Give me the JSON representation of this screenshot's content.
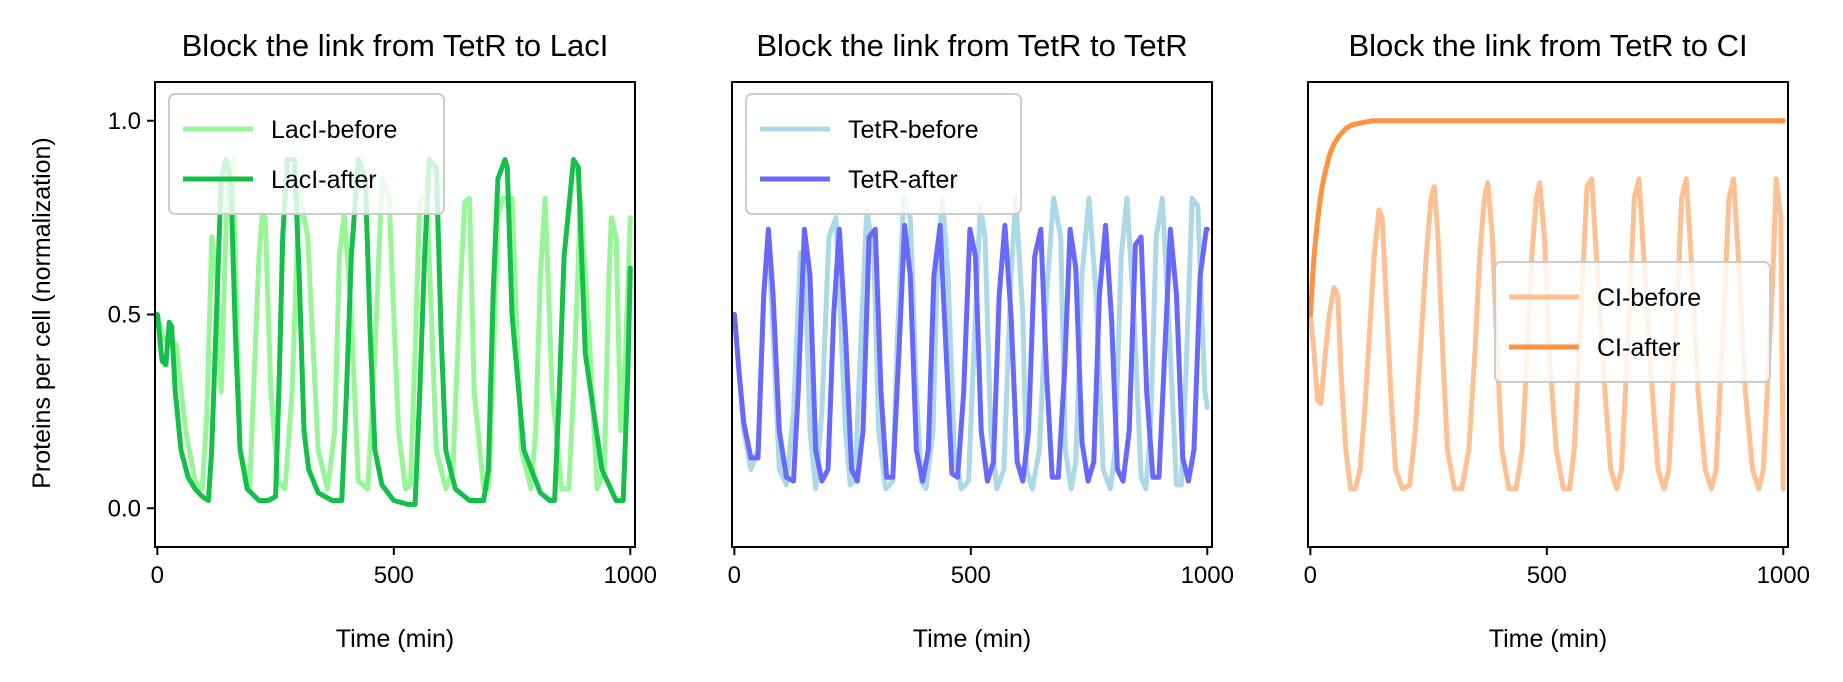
{
  "chart_data": [
    {
      "type": "line",
      "title": "Block the link from TetR to LacI",
      "xlabel": "Time (min)",
      "ylabel": "Proteins per cell (normalization)",
      "xlim": [
        -5,
        1010
      ],
      "ylim": [
        -0.1,
        1.1
      ],
      "xticks": [
        0,
        500,
        1000
      ],
      "yticks": [
        0.0,
        0.5,
        1.0
      ],
      "ytick_labels": [
        "0.0",
        "0.5",
        "1.0"
      ],
      "show_yticks": true,
      "legend_position": "top-left",
      "series": [
        {
          "name": "LacI-before",
          "color": "#98f598",
          "x": [
            0,
            10,
            18,
            28,
            40,
            60,
            80,
            95,
            105,
            115,
            125,
            135,
            148,
            160,
            175,
            195,
            215,
            222,
            228,
            240,
            255,
            270,
            285,
            300,
            318,
            340,
            360,
            375,
            385,
            395,
            410,
            425,
            445,
            460,
            475,
            490,
            510,
            525,
            535,
            545,
            555,
            570,
            590,
            610,
            625,
            640,
            650,
            660,
            670,
            690,
            700,
            710,
            720,
            730,
            750,
            770,
            790,
            800,
            810,
            820,
            835,
            855,
            870,
            880,
            895,
            915,
            930,
            945,
            955,
            960,
            970,
            980,
            990,
            1000
          ],
          "y": [
            0.5,
            0.45,
            0.43,
            0.44,
            0.42,
            0.2,
            0.07,
            0.05,
            0.25,
            0.7,
            0.6,
            0.3,
            0.85,
            0.9,
            0.15,
            0.05,
            0.65,
            0.76,
            0.75,
            0.3,
            0.07,
            0.05,
            0.3,
            0.82,
            0.7,
            0.15,
            0.05,
            0.2,
            0.65,
            0.76,
            0.5,
            0.07,
            0.05,
            0.4,
            0.85,
            0.8,
            0.2,
            0.05,
            0.06,
            0.4,
            0.8,
            0.8,
            0.15,
            0.05,
            0.1,
            0.55,
            0.79,
            0.8,
            0.3,
            0.05,
            0.05,
            0.35,
            0.75,
            0.8,
            0.8,
            0.15,
            0.05,
            0.2,
            0.6,
            0.8,
            0.3,
            0.05,
            0.05,
            0.3,
            0.8,
            0.4,
            0.05,
            0.1,
            0.6,
            0.75,
            0.7,
            0.2,
            0.4,
            0.75
          ]
        },
        {
          "name": "LacI-after",
          "color": "#14c04a",
          "x": [
            0,
            10,
            18,
            25,
            30,
            38,
            50,
            65,
            80,
            95,
            108,
            115,
            125,
            135,
            145,
            155,
            165,
            175,
            190,
            215,
            235,
            250,
            258,
            265,
            275,
            290,
            300,
            310,
            320,
            340,
            370,
            390,
            400,
            410,
            425,
            440,
            450,
            460,
            475,
            500,
            530,
            545,
            555,
            565,
            575,
            590,
            600,
            610,
            630,
            660,
            690,
            700,
            710,
            720,
            735,
            740,
            750,
            775,
            810,
            830,
            840,
            850,
            860,
            880,
            890,
            905,
            940,
            970,
            985,
            995,
            1000
          ],
          "y": [
            0.5,
            0.38,
            0.37,
            0.48,
            0.47,
            0.3,
            0.15,
            0.08,
            0.05,
            0.03,
            0.02,
            0.15,
            0.5,
            0.85,
            0.9,
            0.85,
            0.45,
            0.15,
            0.05,
            0.02,
            0.02,
            0.03,
            0.35,
            0.7,
            0.9,
            0.9,
            0.6,
            0.2,
            0.1,
            0.04,
            0.02,
            0.02,
            0.3,
            0.65,
            0.9,
            0.85,
            0.45,
            0.15,
            0.06,
            0.02,
            0.01,
            0.01,
            0.3,
            0.65,
            0.9,
            0.88,
            0.45,
            0.15,
            0.05,
            0.02,
            0.02,
            0.1,
            0.55,
            0.85,
            0.9,
            0.88,
            0.5,
            0.15,
            0.04,
            0.02,
            0.02,
            0.3,
            0.65,
            0.9,
            0.88,
            0.4,
            0.1,
            0.02,
            0.02,
            0.35,
            0.62
          ]
        }
      ]
    },
    {
      "type": "line",
      "title": "Block the link from TetR to TetR",
      "xlabel": "Time (min)",
      "ylabel": "",
      "xlim": [
        -5,
        1010
      ],
      "ylim": [
        -0.1,
        1.1
      ],
      "xticks": [
        0,
        500,
        1000
      ],
      "yticks": [],
      "ytick_labels": [],
      "show_yticks": false,
      "legend_position": "top-left",
      "series": [
        {
          "name": "TetR-before",
          "color": "#add8e6",
          "x": [
            0,
            10,
            20,
            35,
            50,
            62,
            72,
            82,
            95,
            110,
            125,
            140,
            150,
            160,
            172,
            185,
            200,
            215,
            235,
            245,
            255,
            268,
            280,
            295,
            305,
            320,
            335,
            345,
            358,
            372,
            385,
            395,
            405,
            420,
            430,
            440,
            452,
            465,
            480,
            495,
            508,
            520,
            530,
            542,
            555,
            570,
            585,
            595,
            610,
            618,
            630,
            645,
            660,
            675,
            690,
            700,
            712,
            722,
            735,
            750,
            765,
            780,
            795,
            805,
            818,
            830,
            845,
            860,
            870,
            880,
            892,
            905,
            920,
            935,
            945,
            955,
            968,
            980,
            995,
            1000
          ],
          "y": [
            0.5,
            0.35,
            0.2,
            0.1,
            0.15,
            0.55,
            0.7,
            0.45,
            0.1,
            0.06,
            0.25,
            0.66,
            0.6,
            0.2,
            0.05,
            0.25,
            0.7,
            0.75,
            0.2,
            0.06,
            0.07,
            0.45,
            0.77,
            0.65,
            0.2,
            0.05,
            0.07,
            0.45,
            0.8,
            0.75,
            0.3,
            0.07,
            0.05,
            0.2,
            0.65,
            0.8,
            0.6,
            0.15,
            0.05,
            0.07,
            0.45,
            0.78,
            0.7,
            0.2,
            0.05,
            0.1,
            0.6,
            0.8,
            0.5,
            0.1,
            0.05,
            0.15,
            0.55,
            0.8,
            0.7,
            0.15,
            0.05,
            0.12,
            0.6,
            0.8,
            0.55,
            0.1,
            0.05,
            0.15,
            0.65,
            0.8,
            0.5,
            0.08,
            0.05,
            0.2,
            0.7,
            0.8,
            0.45,
            0.06,
            0.06,
            0.35,
            0.8,
            0.78,
            0.3,
            0.26
          ]
        },
        {
          "name": "TetR-after",
          "color": "#6868fa",
          "x": [
            0,
            10,
            20,
            35,
            50,
            62,
            72,
            82,
            95,
            110,
            125,
            135,
            148,
            160,
            172,
            185,
            198,
            210,
            222,
            235,
            248,
            260,
            272,
            285,
            298,
            310,
            322,
            335,
            348,
            360,
            372,
            385,
            398,
            410,
            422,
            435,
            448,
            460,
            472,
            485,
            498,
            510,
            522,
            535,
            548,
            560,
            572,
            585,
            598,
            610,
            622,
            635,
            648,
            660,
            672,
            685,
            698,
            710,
            722,
            735,
            748,
            760,
            772,
            785,
            798,
            810,
            822,
            835,
            848,
            860,
            872,
            885,
            898,
            910,
            922,
            935,
            948,
            960,
            972,
            985,
            998,
            1000
          ],
          "y": [
            0.5,
            0.35,
            0.22,
            0.13,
            0.13,
            0.55,
            0.72,
            0.55,
            0.2,
            0.08,
            0.07,
            0.3,
            0.72,
            0.6,
            0.15,
            0.07,
            0.1,
            0.5,
            0.72,
            0.45,
            0.1,
            0.07,
            0.2,
            0.7,
            0.72,
            0.3,
            0.08,
            0.08,
            0.4,
            0.73,
            0.6,
            0.15,
            0.07,
            0.15,
            0.6,
            0.73,
            0.4,
            0.09,
            0.08,
            0.3,
            0.72,
            0.65,
            0.2,
            0.07,
            0.12,
            0.55,
            0.73,
            0.5,
            0.12,
            0.07,
            0.2,
            0.65,
            0.72,
            0.35,
            0.08,
            0.08,
            0.35,
            0.72,
            0.62,
            0.17,
            0.07,
            0.12,
            0.55,
            0.73,
            0.48,
            0.1,
            0.07,
            0.2,
            0.68,
            0.7,
            0.3,
            0.08,
            0.08,
            0.4,
            0.72,
            0.55,
            0.13,
            0.07,
            0.15,
            0.6,
            0.72,
            0.72
          ]
        }
      ]
    },
    {
      "type": "line",
      "title": "Block the link from TetR to CI",
      "xlabel": "Time (min)",
      "ylabel": "",
      "xlim": [
        -5,
        1010
      ],
      "ylim": [
        -0.1,
        1.1
      ],
      "xticks": [
        0,
        500,
        1000
      ],
      "yticks": [],
      "ytick_labels": [],
      "show_yticks": false,
      "legend_position": "center-right",
      "series": [
        {
          "name": "CI-before",
          "color": "#fdc093",
          "x": [
            0,
            8,
            15,
            22,
            30,
            40,
            50,
            58,
            65,
            75,
            85,
            95,
            105,
            115,
            125,
            135,
            145,
            152,
            160,
            170,
            180,
            195,
            210,
            222,
            235,
            245,
            255,
            262,
            270,
            280,
            290,
            305,
            320,
            335,
            348,
            358,
            368,
            375,
            385,
            395,
            405,
            420,
            435,
            448,
            458,
            468,
            478,
            485,
            495,
            505,
            520,
            535,
            548,
            558,
            568,
            578,
            585,
            595,
            605,
            620,
            635,
            648,
            658,
            668,
            678,
            685,
            695,
            705,
            720,
            735,
            748,
            758,
            768,
            778,
            785,
            795,
            805,
            820,
            835,
            848,
            858,
            868,
            878,
            885,
            895,
            905,
            920,
            935,
            948,
            958,
            968,
            978,
            985,
            995,
            1000
          ],
          "y": [
            0.5,
            0.4,
            0.28,
            0.27,
            0.38,
            0.5,
            0.57,
            0.55,
            0.35,
            0.15,
            0.05,
            0.05,
            0.1,
            0.25,
            0.45,
            0.65,
            0.77,
            0.75,
            0.55,
            0.3,
            0.1,
            0.05,
            0.06,
            0.2,
            0.45,
            0.65,
            0.8,
            0.83,
            0.7,
            0.4,
            0.15,
            0.05,
            0.05,
            0.15,
            0.4,
            0.65,
            0.8,
            0.84,
            0.7,
            0.4,
            0.15,
            0.05,
            0.05,
            0.15,
            0.4,
            0.65,
            0.8,
            0.84,
            0.7,
            0.4,
            0.15,
            0.05,
            0.05,
            0.15,
            0.4,
            0.65,
            0.83,
            0.85,
            0.65,
            0.35,
            0.1,
            0.05,
            0.1,
            0.35,
            0.6,
            0.8,
            0.85,
            0.65,
            0.35,
            0.1,
            0.05,
            0.1,
            0.35,
            0.6,
            0.8,
            0.85,
            0.65,
            0.3,
            0.1,
            0.05,
            0.1,
            0.35,
            0.6,
            0.8,
            0.85,
            0.65,
            0.3,
            0.1,
            0.05,
            0.1,
            0.35,
            0.6,
            0.85,
            0.75,
            0.05
          ]
        },
        {
          "name": "CI-after",
          "color": "#fd9241",
          "x": [
            0,
            3,
            6,
            10,
            15,
            20,
            25,
            30,
            40,
            50,
            60,
            75,
            90,
            110,
            130,
            160,
            200,
            300,
            400,
            500,
            600,
            700,
            800,
            900,
            1000
          ],
          "y": [
            0.5,
            0.56,
            0.62,
            0.68,
            0.74,
            0.79,
            0.83,
            0.86,
            0.91,
            0.94,
            0.96,
            0.98,
            0.99,
            0.995,
            1.0,
            1.0,
            1.0,
            1.0,
            1.0,
            1.0,
            1.0,
            1.0,
            1.0,
            1.0,
            1.0
          ]
        }
      ]
    }
  ]
}
